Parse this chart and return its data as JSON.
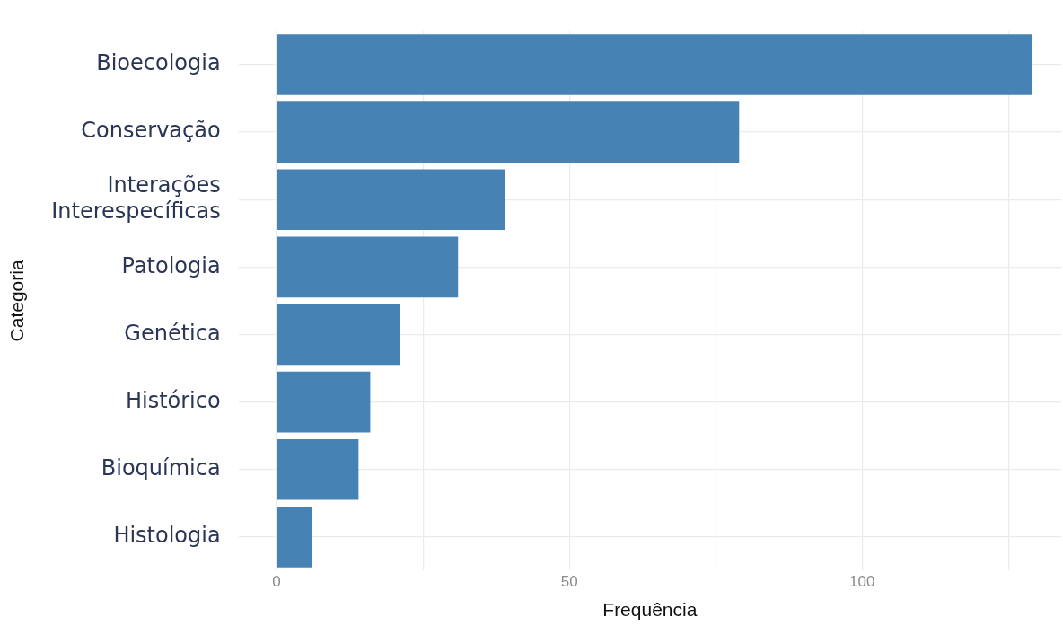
{
  "chart_data": {
    "type": "bar",
    "orientation": "horizontal",
    "xlabel": "Frequência",
    "ylabel": "Categoria",
    "categories": [
      "Bioecologia",
      "Conservação",
      "Interações Interespecíficas",
      "Patologia",
      "Genética",
      "Histórico",
      "Bioquímica",
      "Histologia"
    ],
    "values": [
      129,
      79,
      39,
      31,
      21,
      16,
      14,
      6
    ],
    "color": "#4682b4",
    "xlim": [
      -6.5,
      134
    ],
    "xticks": [
      0,
      {
        "value": 25,
        "label": null
      },
      50,
      {
        "value": 75,
        "label": null
      },
      100,
      {
        "value": 125,
        "label": null
      }
    ],
    "grid": true,
    "legend": false
  }
}
